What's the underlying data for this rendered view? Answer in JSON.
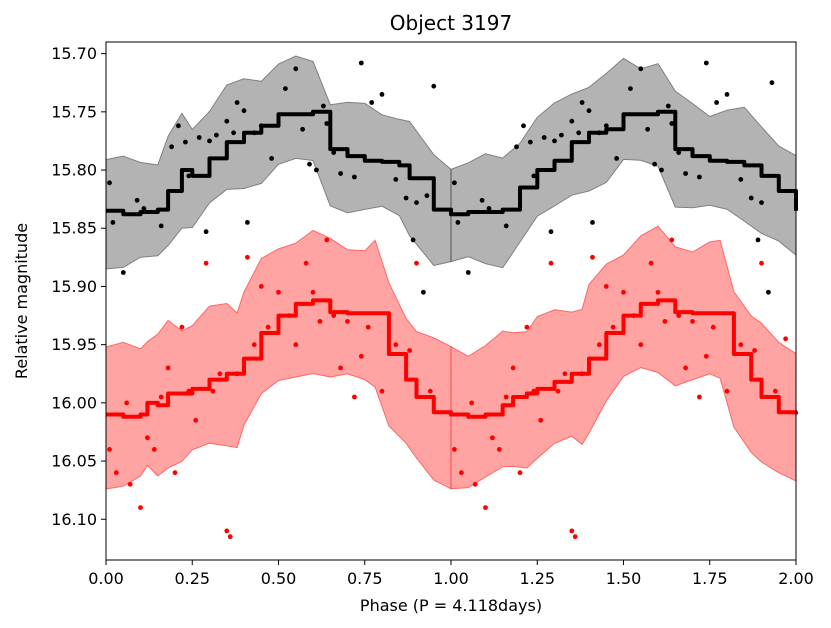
{
  "chart_data": {
    "type": "scatter",
    "title": "Object 3197",
    "xlabel": "Phase (P = 4.118days)",
    "ylabel": "Relative magnitude",
    "xlim": [
      0.0,
      2.0
    ],
    "ylim": [
      16.135,
      15.69
    ],
    "y_inverted": true,
    "grid": false,
    "xticks": [
      0.0,
      0.25,
      0.5,
      0.75,
      1.0,
      1.25,
      1.5,
      1.75,
      2.0
    ],
    "xtick_labels": [
      "0.00",
      "0.25",
      "0.50",
      "0.75",
      "1.00",
      "1.25",
      "1.50",
      "1.75",
      "2.00"
    ],
    "yticks": [
      15.7,
      15.75,
      15.8,
      15.85,
      15.9,
      15.95,
      16.0,
      16.05,
      16.1
    ],
    "ytick_labels": [
      "15.70",
      "15.75",
      "15.80",
      "15.85",
      "15.90",
      "15.95",
      "16.00",
      "16.05",
      "16.10"
    ],
    "series": [
      {
        "color": "#000000",
        "band_color": "#808080",
        "model": [
          [
            0.0,
            15.835
          ],
          [
            0.05,
            15.838
          ],
          [
            0.1,
            15.836
          ],
          [
            0.15,
            15.834
          ],
          [
            0.18,
            15.818
          ],
          [
            0.22,
            15.8
          ],
          [
            0.25,
            15.805
          ],
          [
            0.3,
            15.79
          ],
          [
            0.35,
            15.776
          ],
          [
            0.4,
            15.768
          ],
          [
            0.45,
            15.762
          ],
          [
            0.5,
            15.752
          ],
          [
            0.55,
            15.752
          ],
          [
            0.6,
            15.75
          ],
          [
            0.65,
            15.782
          ],
          [
            0.7,
            15.788
          ],
          [
            0.75,
            15.792
          ],
          [
            0.8,
            15.793
          ],
          [
            0.85,
            15.796
          ],
          [
            0.88,
            15.807
          ],
          [
            0.95,
            15.834
          ],
          [
            1.0,
            15.838
          ],
          [
            1.05,
            15.836
          ],
          [
            1.1,
            15.836
          ],
          [
            1.15,
            15.834
          ],
          [
            1.2,
            15.815
          ],
          [
            1.25,
            15.8
          ],
          [
            1.3,
            15.792
          ],
          [
            1.35,
            15.776
          ],
          [
            1.4,
            15.768
          ],
          [
            1.45,
            15.765
          ],
          [
            1.5,
            15.752
          ],
          [
            1.55,
            15.752
          ],
          [
            1.6,
            15.75
          ],
          [
            1.65,
            15.782
          ],
          [
            1.7,
            15.788
          ],
          [
            1.75,
            15.792
          ],
          [
            1.8,
            15.793
          ],
          [
            1.85,
            15.796
          ],
          [
            1.9,
            15.805
          ],
          [
            1.95,
            15.818
          ],
          [
            2.0,
            15.835
          ]
        ],
        "band_halfwidth": 0.044,
        "points": [
          [
            0.01,
            15.811
          ],
          [
            0.02,
            15.845
          ],
          [
            0.05,
            15.888
          ],
          [
            0.09,
            15.826
          ],
          [
            0.11,
            15.833
          ],
          [
            0.16,
            15.848
          ],
          [
            0.19,
            15.78
          ],
          [
            0.21,
            15.762
          ],
          [
            0.23,
            15.776
          ],
          [
            0.24,
            15.805
          ],
          [
            0.27,
            15.772
          ],
          [
            0.29,
            15.853
          ],
          [
            0.3,
            15.775
          ],
          [
            0.32,
            15.77
          ],
          [
            0.35,
            15.758
          ],
          [
            0.37,
            15.768
          ],
          [
            0.38,
            15.742
          ],
          [
            0.4,
            15.749
          ],
          [
            0.41,
            15.845
          ],
          [
            0.43,
            15.768
          ],
          [
            0.45,
            15.762
          ],
          [
            0.48,
            15.79
          ],
          [
            0.52,
            15.73
          ],
          [
            0.55,
            15.713
          ],
          [
            0.57,
            15.765
          ],
          [
            0.59,
            15.795
          ],
          [
            0.61,
            15.8
          ],
          [
            0.63,
            15.745
          ],
          [
            0.64,
            15.76
          ],
          [
            0.66,
            15.785
          ],
          [
            0.68,
            15.803
          ],
          [
            0.72,
            15.806
          ],
          [
            0.74,
            15.708
          ],
          [
            0.77,
            15.742
          ],
          [
            0.8,
            15.735
          ],
          [
            0.84,
            15.808
          ],
          [
            0.87,
            15.824
          ],
          [
            0.89,
            15.86
          ],
          [
            0.9,
            15.828
          ],
          [
            0.92,
            15.905
          ],
          [
            0.93,
            15.822
          ],
          [
            0.95,
            15.728
          ],
          [
            1.01,
            15.811
          ],
          [
            1.02,
            15.845
          ],
          [
            1.05,
            15.888
          ],
          [
            1.09,
            15.826
          ],
          [
            1.11,
            15.833
          ],
          [
            1.16,
            15.848
          ],
          [
            1.19,
            15.78
          ],
          [
            1.21,
            15.762
          ],
          [
            1.23,
            15.776
          ],
          [
            1.24,
            15.805
          ],
          [
            1.27,
            15.772
          ],
          [
            1.29,
            15.853
          ],
          [
            1.3,
            15.775
          ],
          [
            1.32,
            15.77
          ],
          [
            1.35,
            15.758
          ],
          [
            1.37,
            15.768
          ],
          [
            1.38,
            15.742
          ],
          [
            1.4,
            15.749
          ],
          [
            1.41,
            15.845
          ],
          [
            1.43,
            15.768
          ],
          [
            1.45,
            15.762
          ],
          [
            1.48,
            15.79
          ],
          [
            1.52,
            15.73
          ],
          [
            1.55,
            15.713
          ],
          [
            1.57,
            15.765
          ],
          [
            1.59,
            15.795
          ],
          [
            1.61,
            15.8
          ],
          [
            1.63,
            15.745
          ],
          [
            1.64,
            15.76
          ],
          [
            1.66,
            15.785
          ],
          [
            1.68,
            15.803
          ],
          [
            1.72,
            15.806
          ],
          [
            1.74,
            15.708
          ],
          [
            1.77,
            15.742
          ],
          [
            1.8,
            15.735
          ],
          [
            1.84,
            15.808
          ],
          [
            1.87,
            15.824
          ],
          [
            1.89,
            15.86
          ],
          [
            1.9,
            15.828
          ],
          [
            1.92,
            15.905
          ],
          [
            1.93,
            15.725
          ]
        ]
      },
      {
        "color": "#ff0000",
        "band_color": "#ff6666",
        "model": [
          [
            0.0,
            16.01
          ],
          [
            0.05,
            16.012
          ],
          [
            0.1,
            16.01
          ],
          [
            0.12,
            16.0
          ],
          [
            0.15,
            16.002
          ],
          [
            0.18,
            15.992
          ],
          [
            0.22,
            15.992
          ],
          [
            0.25,
            15.988
          ],
          [
            0.3,
            15.98
          ],
          [
            0.35,
            15.975
          ],
          [
            0.38,
            15.975
          ],
          [
            0.4,
            15.962
          ],
          [
            0.45,
            15.94
          ],
          [
            0.5,
            15.925
          ],
          [
            0.55,
            15.915
          ],
          [
            0.6,
            15.912
          ],
          [
            0.65,
            15.922
          ],
          [
            0.7,
            15.923
          ],
          [
            0.75,
            15.923
          ],
          [
            0.78,
            15.923
          ],
          [
            0.82,
            15.958
          ],
          [
            0.87,
            15.98
          ],
          [
            0.9,
            15.995
          ],
          [
            0.95,
            16.008
          ],
          [
            1.0,
            16.01
          ],
          [
            1.05,
            16.012
          ],
          [
            1.1,
            16.01
          ],
          [
            1.15,
            16.002
          ],
          [
            1.18,
            15.995
          ],
          [
            1.22,
            15.992
          ],
          [
            1.25,
            15.988
          ],
          [
            1.3,
            15.982
          ],
          [
            1.35,
            15.975
          ],
          [
            1.38,
            15.975
          ],
          [
            1.4,
            15.962
          ],
          [
            1.45,
            15.94
          ],
          [
            1.5,
            15.925
          ],
          [
            1.55,
            15.915
          ],
          [
            1.6,
            15.912
          ],
          [
            1.65,
            15.922
          ],
          [
            1.7,
            15.923
          ],
          [
            1.75,
            15.923
          ],
          [
            1.78,
            15.923
          ],
          [
            1.82,
            15.958
          ],
          [
            1.87,
            15.98
          ],
          [
            1.9,
            15.995
          ],
          [
            1.95,
            16.008
          ],
          [
            2.0,
            16.01
          ]
        ],
        "band_halfwidth": 0.058,
        "points": [
          [
            0.01,
            16.04
          ],
          [
            0.03,
            16.06
          ],
          [
            0.06,
            16.0
          ],
          [
            0.07,
            16.07
          ],
          [
            0.1,
            16.09
          ],
          [
            0.12,
            16.03
          ],
          [
            0.14,
            16.04
          ],
          [
            0.16,
            15.995
          ],
          [
            0.18,
            15.97
          ],
          [
            0.2,
            16.06
          ],
          [
            0.22,
            15.935
          ],
          [
            0.24,
            15.99
          ],
          [
            0.26,
            16.015
          ],
          [
            0.29,
            15.88
          ],
          [
            0.31,
            15.99
          ],
          [
            0.33,
            15.975
          ],
          [
            0.35,
            16.11
          ],
          [
            0.36,
            16.115
          ],
          [
            0.38,
            15.975
          ],
          [
            0.41,
            15.875
          ],
          [
            0.43,
            15.95
          ],
          [
            0.45,
            15.9
          ],
          [
            0.47,
            15.935
          ],
          [
            0.5,
            15.905
          ],
          [
            0.53,
            15.925
          ],
          [
            0.55,
            15.95
          ],
          [
            0.58,
            15.88
          ],
          [
            0.6,
            15.905
          ],
          [
            0.62,
            15.93
          ],
          [
            0.64,
            15.86
          ],
          [
            0.66,
            15.925
          ],
          [
            0.68,
            15.97
          ],
          [
            0.7,
            15.93
          ],
          [
            0.72,
            15.995
          ],
          [
            0.74,
            15.96
          ],
          [
            0.76,
            15.935
          ],
          [
            0.8,
            15.99
          ],
          [
            0.84,
            15.95
          ],
          [
            0.88,
            15.955
          ],
          [
            0.9,
            15.88
          ],
          [
            0.94,
            15.99
          ],
          [
            1.01,
            16.04
          ],
          [
            1.03,
            16.06
          ],
          [
            1.06,
            16.0
          ],
          [
            1.07,
            16.07
          ],
          [
            1.1,
            16.09
          ],
          [
            1.12,
            16.03
          ],
          [
            1.14,
            16.04
          ],
          [
            1.16,
            15.995
          ],
          [
            1.18,
            15.97
          ],
          [
            1.2,
            16.06
          ],
          [
            1.22,
            15.935
          ],
          [
            1.24,
            15.99
          ],
          [
            1.26,
            16.015
          ],
          [
            1.29,
            15.88
          ],
          [
            1.31,
            15.99
          ],
          [
            1.33,
            15.975
          ],
          [
            1.35,
            16.11
          ],
          [
            1.36,
            16.115
          ],
          [
            1.38,
            15.975
          ],
          [
            1.41,
            15.875
          ],
          [
            1.43,
            15.95
          ],
          [
            1.45,
            15.9
          ],
          [
            1.47,
            15.935
          ],
          [
            1.5,
            15.905
          ],
          [
            1.53,
            15.925
          ],
          [
            1.55,
            15.95
          ],
          [
            1.58,
            15.88
          ],
          [
            1.6,
            15.905
          ],
          [
            1.62,
            15.93
          ],
          [
            1.64,
            15.86
          ],
          [
            1.66,
            15.925
          ],
          [
            1.68,
            15.97
          ],
          [
            1.7,
            15.93
          ],
          [
            1.72,
            15.995
          ],
          [
            1.74,
            15.96
          ],
          [
            1.76,
            15.935
          ],
          [
            1.8,
            15.99
          ],
          [
            1.84,
            15.95
          ],
          [
            1.88,
            15.955
          ],
          [
            1.9,
            15.88
          ],
          [
            1.94,
            15.99
          ],
          [
            1.97,
            15.945
          ]
        ]
      }
    ]
  }
}
